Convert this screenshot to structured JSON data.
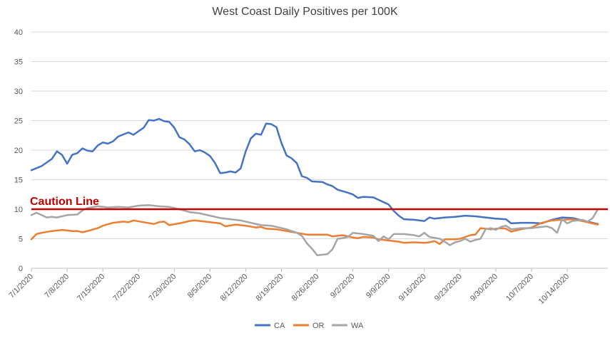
{
  "chart_data": {
    "type": "line",
    "title": "West Coast Daily Positives per 100K",
    "xlabel": "",
    "ylabel": "",
    "ylim": [
      0,
      40
    ],
    "yticks": [
      0,
      5,
      10,
      15,
      20,
      25,
      30,
      35,
      40
    ],
    "grid": true,
    "legend_position": "bottom",
    "x_start": "2020-07-01",
    "x_end": "2020-10-20",
    "x_tick_labels": [
      "7/1/2020",
      "7/8/2020",
      "7/15/2020",
      "7/22/2020",
      "7/29/2020",
      "8/5/2020",
      "8/12/2020",
      "8/19/2020",
      "8/26/2020",
      "9/2/2020",
      "9/9/2020",
      "9/16/2020",
      "9/23/2020",
      "9/30/2020",
      "10/7/2020",
      "10/14/2020"
    ],
    "reference_line": {
      "label": "Caution Line",
      "value": 10,
      "color": "#C00000"
    },
    "series": [
      {
        "name": "CA",
        "color": "#4472C4",
        "points": [
          [
            "2020-07-01",
            16.6
          ],
          [
            "2020-07-03",
            17.3
          ],
          [
            "2020-07-05",
            18.5
          ],
          [
            "2020-07-06",
            19.8
          ],
          [
            "2020-07-07",
            19.2
          ],
          [
            "2020-07-08",
            17.7
          ],
          [
            "2020-07-09",
            19.2
          ],
          [
            "2020-07-10",
            19.5
          ],
          [
            "2020-07-11",
            20.3
          ],
          [
            "2020-07-12",
            19.9
          ],
          [
            "2020-07-13",
            19.8
          ],
          [
            "2020-07-14",
            20.8
          ],
          [
            "2020-07-15",
            21.3
          ],
          [
            "2020-07-16",
            21.1
          ],
          [
            "2020-07-17",
            21.5
          ],
          [
            "2020-07-18",
            22.3
          ],
          [
            "2020-07-20",
            23.0
          ],
          [
            "2020-07-21",
            22.6
          ],
          [
            "2020-07-22",
            23.2
          ],
          [
            "2020-07-23",
            23.8
          ],
          [
            "2020-07-24",
            25.1
          ],
          [
            "2020-07-25",
            25.0
          ],
          [
            "2020-07-26",
            25.3
          ],
          [
            "2020-07-27",
            24.9
          ],
          [
            "2020-07-28",
            24.8
          ],
          [
            "2020-07-29",
            23.8
          ],
          [
            "2020-07-30",
            22.2
          ],
          [
            "2020-07-31",
            21.8
          ],
          [
            "2020-08-01",
            21.0
          ],
          [
            "2020-08-02",
            19.8
          ],
          [
            "2020-08-03",
            20.0
          ],
          [
            "2020-08-04",
            19.6
          ],
          [
            "2020-08-05",
            19.0
          ],
          [
            "2020-08-06",
            17.8
          ],
          [
            "2020-08-07",
            16.1
          ],
          [
            "2020-08-08",
            16.2
          ],
          [
            "2020-08-09",
            16.4
          ],
          [
            "2020-08-10",
            16.2
          ],
          [
            "2020-08-11",
            16.9
          ],
          [
            "2020-08-12",
            19.8
          ],
          [
            "2020-08-13",
            22.0
          ],
          [
            "2020-08-14",
            22.8
          ],
          [
            "2020-08-15",
            22.6
          ],
          [
            "2020-08-16",
            24.5
          ],
          [
            "2020-08-17",
            24.4
          ],
          [
            "2020-08-18",
            23.9
          ],
          [
            "2020-08-19",
            21.2
          ],
          [
            "2020-08-20",
            19.1
          ],
          [
            "2020-08-21",
            18.6
          ],
          [
            "2020-08-22",
            17.8
          ],
          [
            "2020-08-23",
            15.6
          ],
          [
            "2020-08-24",
            15.3
          ],
          [
            "2020-08-25",
            14.7
          ],
          [
            "2020-08-27",
            14.6
          ],
          [
            "2020-08-28",
            14.2
          ],
          [
            "2020-08-29",
            13.9
          ],
          [
            "2020-08-30",
            13.3
          ],
          [
            "2020-09-01",
            12.8
          ],
          [
            "2020-09-02",
            12.5
          ],
          [
            "2020-09-03",
            11.9
          ],
          [
            "2020-09-04",
            12.1
          ],
          [
            "2020-09-06",
            12.0
          ],
          [
            "2020-09-07",
            11.6
          ],
          [
            "2020-09-09",
            10.8
          ],
          [
            "2020-09-10",
            9.7
          ],
          [
            "2020-09-11",
            8.9
          ],
          [
            "2020-09-12",
            8.3
          ],
          [
            "2020-09-14",
            8.2
          ],
          [
            "2020-09-16",
            8.0
          ],
          [
            "2020-09-17",
            8.6
          ],
          [
            "2020-09-18",
            8.4
          ],
          [
            "2020-09-20",
            8.6
          ],
          [
            "2020-09-22",
            8.7
          ],
          [
            "2020-09-24",
            8.9
          ],
          [
            "2020-09-26",
            8.8
          ],
          [
            "2020-09-28",
            8.6
          ],
          [
            "2020-09-30",
            8.4
          ],
          [
            "2020-10-02",
            8.3
          ],
          [
            "2020-10-03",
            7.6
          ],
          [
            "2020-10-05",
            7.7
          ],
          [
            "2020-10-07",
            7.7
          ],
          [
            "2020-10-09",
            7.6
          ],
          [
            "2020-10-11",
            8.2
          ],
          [
            "2020-10-13",
            8.6
          ],
          [
            "2020-10-15",
            8.5
          ],
          [
            "2020-10-17",
            8.1
          ],
          [
            "2020-10-20",
            7.5
          ]
        ]
      },
      {
        "name": "OR",
        "color": "#ED7D31",
        "points": [
          [
            "2020-07-01",
            4.9
          ],
          [
            "2020-07-02",
            5.8
          ],
          [
            "2020-07-03",
            6.0
          ],
          [
            "2020-07-05",
            6.3
          ],
          [
            "2020-07-07",
            6.5
          ],
          [
            "2020-07-08",
            6.4
          ],
          [
            "2020-07-09",
            6.3
          ],
          [
            "2020-07-10",
            6.3
          ],
          [
            "2020-07-11",
            6.1
          ],
          [
            "2020-07-12",
            6.3
          ],
          [
            "2020-07-14",
            6.8
          ],
          [
            "2020-07-15",
            7.2
          ],
          [
            "2020-07-17",
            7.7
          ],
          [
            "2020-07-19",
            7.9
          ],
          [
            "2020-07-20",
            7.8
          ],
          [
            "2020-07-21",
            8.1
          ],
          [
            "2020-07-23",
            7.8
          ],
          [
            "2020-07-25",
            7.5
          ],
          [
            "2020-07-26",
            7.8
          ],
          [
            "2020-07-27",
            7.9
          ],
          [
            "2020-07-28",
            7.3
          ],
          [
            "2020-07-30",
            7.6
          ],
          [
            "2020-08-01",
            8.0
          ],
          [
            "2020-08-02",
            8.1
          ],
          [
            "2020-08-04",
            7.9
          ],
          [
            "2020-08-06",
            7.7
          ],
          [
            "2020-08-07",
            7.6
          ],
          [
            "2020-08-08",
            7.1
          ],
          [
            "2020-08-10",
            7.4
          ],
          [
            "2020-08-12",
            7.2
          ],
          [
            "2020-08-14",
            6.9
          ],
          [
            "2020-08-15",
            7.0
          ],
          [
            "2020-08-16",
            6.7
          ],
          [
            "2020-08-18",
            6.6
          ],
          [
            "2020-08-20",
            6.3
          ],
          [
            "2020-08-22",
            6.0
          ],
          [
            "2020-08-24",
            5.7
          ],
          [
            "2020-08-26",
            5.7
          ],
          [
            "2020-08-28",
            5.7
          ],
          [
            "2020-08-29",
            5.4
          ],
          [
            "2020-08-31",
            5.6
          ],
          [
            "2020-09-02",
            5.2
          ],
          [
            "2020-09-03",
            5.1
          ],
          [
            "2020-09-04",
            5.3
          ],
          [
            "2020-09-06",
            5.2
          ],
          [
            "2020-09-07",
            4.9
          ],
          [
            "2020-09-09",
            4.7
          ],
          [
            "2020-09-11",
            4.5
          ],
          [
            "2020-09-12",
            4.3
          ],
          [
            "2020-09-14",
            4.4
          ],
          [
            "2020-09-16",
            4.3
          ],
          [
            "2020-09-17",
            4.4
          ],
          [
            "2020-09-18",
            4.6
          ],
          [
            "2020-09-19",
            4.1
          ],
          [
            "2020-09-20",
            4.9
          ],
          [
            "2020-09-22",
            4.9
          ],
          [
            "2020-09-23",
            5.0
          ],
          [
            "2020-09-25",
            5.6
          ],
          [
            "2020-09-26",
            5.7
          ],
          [
            "2020-09-27",
            6.8
          ],
          [
            "2020-09-29",
            6.6
          ],
          [
            "2020-10-01",
            6.8
          ],
          [
            "2020-10-02",
            6.7
          ],
          [
            "2020-10-03",
            6.2
          ],
          [
            "2020-10-05",
            6.6
          ],
          [
            "2020-10-07",
            6.9
          ],
          [
            "2020-10-09",
            7.7
          ],
          [
            "2020-10-11",
            8.1
          ],
          [
            "2020-10-13",
            8.2
          ],
          [
            "2020-10-15",
            8.3
          ],
          [
            "2020-10-17",
            8.0
          ],
          [
            "2020-10-20",
            7.4
          ]
        ]
      },
      {
        "name": "WA",
        "color": "#A5A5A5",
        "points": [
          [
            "2020-07-01",
            9.0
          ],
          [
            "2020-07-02",
            9.4
          ],
          [
            "2020-07-03",
            9.0
          ],
          [
            "2020-07-04",
            8.6
          ],
          [
            "2020-07-05",
            8.7
          ],
          [
            "2020-07-06",
            8.6
          ],
          [
            "2020-07-08",
            9.0
          ],
          [
            "2020-07-10",
            9.1
          ],
          [
            "2020-07-11",
            9.8
          ],
          [
            "2020-07-12",
            10.2
          ],
          [
            "2020-07-14",
            10.5
          ],
          [
            "2020-07-16",
            10.3
          ],
          [
            "2020-07-18",
            10.4
          ],
          [
            "2020-07-20",
            10.3
          ],
          [
            "2020-07-22",
            10.6
          ],
          [
            "2020-07-24",
            10.7
          ],
          [
            "2020-07-26",
            10.5
          ],
          [
            "2020-07-28",
            10.4
          ],
          [
            "2020-07-30",
            10.0
          ],
          [
            "2020-08-01",
            9.5
          ],
          [
            "2020-08-03",
            9.3
          ],
          [
            "2020-08-05",
            8.9
          ],
          [
            "2020-08-07",
            8.5
          ],
          [
            "2020-08-09",
            8.3
          ],
          [
            "2020-08-11",
            8.1
          ],
          [
            "2020-08-13",
            7.7
          ],
          [
            "2020-08-15",
            7.3
          ],
          [
            "2020-08-17",
            7.2
          ],
          [
            "2020-08-18",
            7.0
          ],
          [
            "2020-08-20",
            6.6
          ],
          [
            "2020-08-22",
            6.0
          ],
          [
            "2020-08-23",
            5.5
          ],
          [
            "2020-08-24",
            4.2
          ],
          [
            "2020-08-25",
            3.3
          ],
          [
            "2020-08-26",
            2.2
          ],
          [
            "2020-08-28",
            2.4
          ],
          [
            "2020-08-29",
            3.2
          ],
          [
            "2020-08-30",
            5.0
          ],
          [
            "2020-08-31",
            5.1
          ],
          [
            "2020-09-01",
            5.3
          ],
          [
            "2020-09-02",
            6.0
          ],
          [
            "2020-09-04",
            5.8
          ],
          [
            "2020-09-06",
            5.5
          ],
          [
            "2020-09-07",
            4.6
          ],
          [
            "2020-09-08",
            5.4
          ],
          [
            "2020-09-09",
            4.9
          ],
          [
            "2020-09-10",
            5.8
          ],
          [
            "2020-09-12",
            5.8
          ],
          [
            "2020-09-14",
            5.6
          ],
          [
            "2020-09-15",
            5.4
          ],
          [
            "2020-09-16",
            6.0
          ],
          [
            "2020-09-17",
            5.3
          ],
          [
            "2020-09-19",
            5.0
          ],
          [
            "2020-09-20",
            4.5
          ],
          [
            "2020-09-21",
            3.9
          ],
          [
            "2020-09-22",
            4.4
          ],
          [
            "2020-09-23",
            4.6
          ],
          [
            "2020-09-24",
            5.0
          ],
          [
            "2020-09-25",
            4.5
          ],
          [
            "2020-09-26",
            4.8
          ],
          [
            "2020-09-27",
            5.0
          ],
          [
            "2020-09-28",
            6.6
          ],
          [
            "2020-09-29",
            6.8
          ],
          [
            "2020-09-30",
            6.5
          ],
          [
            "2020-10-01",
            7.0
          ],
          [
            "2020-10-02",
            7.2
          ],
          [
            "2020-10-03",
            6.6
          ],
          [
            "2020-10-05",
            6.8
          ],
          [
            "2020-10-07",
            6.8
          ],
          [
            "2020-10-09",
            7.0
          ],
          [
            "2020-10-10",
            7.1
          ],
          [
            "2020-10-11",
            6.8
          ],
          [
            "2020-10-12",
            6.0
          ],
          [
            "2020-10-13",
            8.3
          ],
          [
            "2020-10-14",
            7.6
          ],
          [
            "2020-10-15",
            8.0
          ],
          [
            "2020-10-17",
            8.2
          ],
          [
            "2020-10-18",
            7.9
          ],
          [
            "2020-10-19",
            8.5
          ],
          [
            "2020-10-20",
            10.0
          ]
        ]
      }
    ]
  }
}
